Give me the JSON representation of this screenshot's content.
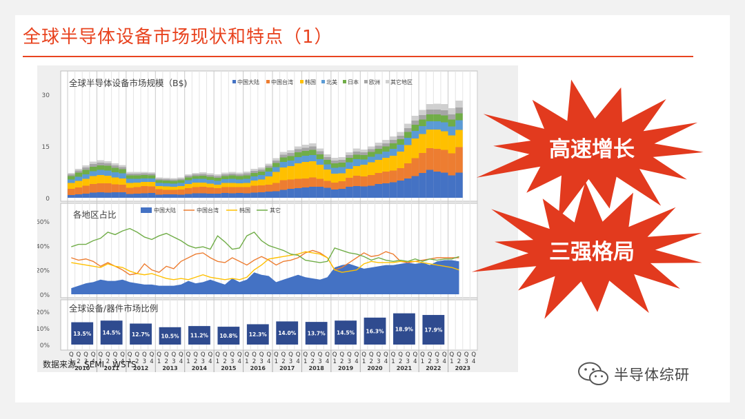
{
  "page": {
    "title": "全球半导体设备市场现状和特点（1）",
    "source": "数据来源：SEMI、WSTS",
    "watermark": "半导体综研"
  },
  "callouts": [
    {
      "text": "高速增长",
      "color": "#e23a1e"
    },
    {
      "text": "三强格局",
      "color": "#e23a1e"
    }
  ],
  "colors": {
    "中国大陆": "#4472c4",
    "中国台湾": "#ed7d31",
    "韩国": "#ffc000",
    "北美": "#5b9bd5",
    "日本": "#70ad47",
    "欧洲": "#a5a5a5",
    "其它地区": "#d0d0d0",
    "其它": "#70ad47"
  },
  "axis": {
    "years": [
      "2010",
      "2011",
      "2012",
      "2013",
      "2014",
      "2015",
      "2016",
      "2017",
      "2018",
      "2019",
      "2020",
      "2021",
      "2022",
      "2023"
    ],
    "quarter_prefix": "Q",
    "quarters": [
      "1",
      "2",
      "3",
      "4"
    ]
  },
  "chart_data": [
    {
      "type": "bar",
      "title": "全球半导体设备市场规模（B$)",
      "stacked": true,
      "ylim": [
        0,
        30
      ],
      "yticks": [
        "0",
        "15",
        "30"
      ],
      "legend": [
        "中国大陆",
        "中国台湾",
        "韩国",
        "北美",
        "日本",
        "欧洲",
        "其它地区"
      ],
      "legend_position": "top",
      "series": [
        {
          "name": "中国大陆",
          "values": [
            0.8,
            1.0,
            1.2,
            1.5,
            1.6,
            1.5,
            1.6,
            1.6,
            1.1,
            1.2,
            1.3,
            1.4,
            0.9,
            1.0,
            1.0,
            0.9,
            1.1,
            1.3,
            1.3,
            1.2,
            1.2,
            1.4,
            1.3,
            1.4,
            1.3,
            1.5,
            1.6,
            1.8,
            1.9,
            2.3,
            2.6,
            2.8,
            3.0,
            3.2,
            3.2,
            2.9,
            2.4,
            2.6,
            3.2,
            3.4,
            3.3,
            3.5,
            4.0,
            4.2,
            4.5,
            5.0,
            5.6,
            6.3,
            7.2,
            8.1,
            7.6,
            7.3,
            6.5,
            7.3
          ]
        },
        {
          "name": "中国台湾",
          "values": [
            1.8,
            2.0,
            2.3,
            2.5,
            2.6,
            2.7,
            2.3,
            2.2,
            1.8,
            1.9,
            2.1,
            1.9,
            1.6,
            1.3,
            1.3,
            1.5,
            1.7,
            1.8,
            1.9,
            1.8,
            1.6,
            1.7,
            1.8,
            1.7,
            1.8,
            2.0,
            2.0,
            2.0,
            2.4,
            2.8,
            2.7,
            2.7,
            2.6,
            2.7,
            2.3,
            2.0,
            2.0,
            2.2,
            2.6,
            3.0,
            2.9,
            3.1,
            3.2,
            3.4,
            3.4,
            3.6,
            4.4,
            5.2,
            5.8,
            6.3,
            6.6,
            6.6,
            6.4,
            7.4
          ]
        },
        {
          "name": "韩国",
          "values": [
            1.7,
            1.9,
            2.0,
            2.3,
            2.4,
            2.2,
            2.0,
            1.8,
            1.4,
            1.3,
            1.2,
            1.3,
            0.9,
            1.0,
            0.9,
            1.0,
            1.2,
            1.3,
            1.2,
            1.1,
            1.0,
            1.2,
            1.2,
            1.1,
            1.2,
            1.5,
            1.7,
            2.4,
            3.2,
            3.7,
            3.9,
            4.5,
            4.8,
            4.7,
            4.1,
            3.3,
            2.6,
            2.3,
            2.6,
            2.8,
            3.4,
            3.7,
            3.8,
            4.0,
            4.3,
            4.8,
            5.3,
            5.7,
            5.5,
            5.4,
            5.6,
            5.4,
            5.2,
            5.0
          ]
        },
        {
          "name": "北美",
          "values": [
            1.0,
            1.2,
            1.3,
            1.4,
            1.5,
            1.5,
            1.5,
            1.5,
            1.2,
            1.1,
            1.0,
            1.0,
            0.9,
            0.9,
            0.9,
            0.9,
            1.1,
            1.1,
            1.1,
            1.1,
            1.1,
            1.1,
            1.2,
            1.1,
            1.2,
            1.2,
            1.3,
            1.4,
            1.4,
            1.6,
            1.6,
            1.8,
            1.8,
            1.8,
            1.6,
            1.5,
            1.7,
            1.8,
            1.9,
            2.0,
            1.5,
            1.6,
            1.7,
            1.8,
            2.0,
            2.0,
            2.1,
            2.2,
            2.3,
            2.4,
            2.4,
            2.6,
            2.6,
            2.8
          ]
        },
        {
          "name": "日本",
          "values": [
            1.0,
            1.2,
            1.3,
            1.3,
            1.3,
            1.4,
            1.3,
            1.2,
            1.0,
            1.0,
            1.0,
            0.9,
            0.8,
            0.8,
            0.8,
            0.8,
            0.8,
            0.8,
            0.9,
            0.9,
            0.9,
            0.9,
            1.0,
            1.0,
            1.0,
            1.0,
            1.0,
            1.1,
            1.2,
            1.3,
            1.3,
            1.4,
            1.4,
            1.5,
            1.4,
            1.3,
            1.3,
            1.3,
            1.3,
            1.3,
            1.3,
            1.4,
            1.5,
            1.5,
            1.6,
            1.6,
            1.7,
            1.8,
            1.9,
            2.0,
            2.0,
            2.0,
            2.0,
            2.0
          ]
        },
        {
          "name": "欧洲",
          "values": [
            0.5,
            0.6,
            0.7,
            0.8,
            0.8,
            0.7,
            0.7,
            0.6,
            0.5,
            0.5,
            0.5,
            0.5,
            0.4,
            0.4,
            0.4,
            0.4,
            0.5,
            0.5,
            0.5,
            0.5,
            0.5,
            0.5,
            0.5,
            0.5,
            0.6,
            0.6,
            0.6,
            0.6,
            0.7,
            0.8,
            0.9,
            0.9,
            0.9,
            1.0,
            0.9,
            0.8,
            0.8,
            0.8,
            0.8,
            0.9,
            0.8,
            0.8,
            0.9,
            0.9,
            1.0,
            1.0,
            1.1,
            1.2,
            1.3,
            1.4,
            1.4,
            1.5,
            1.5,
            1.7
          ]
        },
        {
          "name": "其它地区",
          "values": [
            0.4,
            0.5,
            0.6,
            0.7,
            0.7,
            0.6,
            0.6,
            0.6,
            0.5,
            0.5,
            0.4,
            0.4,
            0.4,
            0.4,
            0.4,
            0.4,
            0.4,
            0.4,
            0.5,
            0.5,
            0.5,
            0.5,
            0.5,
            0.5,
            0.5,
            0.6,
            0.6,
            0.6,
            0.7,
            0.8,
            0.8,
            0.8,
            0.9,
            0.9,
            0.8,
            0.8,
            0.8,
            0.8,
            0.8,
            0.9,
            0.8,
            0.8,
            0.9,
            1.0,
            1.0,
            1.1,
            1.3,
            1.4,
            1.5,
            1.6,
            1.7,
            1.8,
            1.8,
            2.0
          ]
        }
      ]
    },
    {
      "type": "line",
      "title": "各地区占比",
      "ylim": [
        0,
        60
      ],
      "yticks": [
        "0%",
        "20%",
        "40%",
        "60%"
      ],
      "legend": [
        "中国大陆",
        "中国台湾",
        "韩国",
        "其它"
      ],
      "legend_position": "top",
      "area_series": "中国大陆",
      "series": [
        {
          "name": "中国大陆",
          "values": [
            5,
            7,
            9,
            10,
            12,
            11,
            11,
            12,
            10,
            9,
            8,
            8,
            7,
            7,
            7,
            8,
            11,
            9,
            10,
            12,
            10,
            8,
            13,
            10,
            12,
            18,
            16,
            15,
            10,
            12,
            14,
            16,
            14,
            13,
            12,
            14,
            22,
            24,
            25,
            23,
            21,
            22,
            23,
            24,
            24,
            25,
            26,
            25,
            26,
            24,
            27,
            28,
            28,
            27
          ]
        },
        {
          "name": "中国台湾",
          "values": [
            30,
            28,
            29,
            27,
            23,
            26,
            23,
            20,
            16,
            17,
            25,
            20,
            18,
            23,
            21,
            27,
            30,
            33,
            34,
            30,
            27,
            26,
            30,
            27,
            24,
            28,
            31,
            28,
            24,
            27,
            28,
            30,
            34,
            36,
            34,
            30,
            20,
            22,
            26,
            30,
            34,
            31,
            32,
            35,
            33,
            27,
            26,
            27,
            28,
            29,
            30,
            30,
            30,
            30
          ]
        },
        {
          "name": "韩国",
          "values": [
            26,
            25,
            24,
            23,
            22,
            25,
            23,
            22,
            19,
            17,
            16,
            17,
            15,
            13,
            12,
            13,
            12,
            14,
            16,
            14,
            13,
            12,
            13,
            12,
            14,
            20,
            24,
            29,
            30,
            31,
            32,
            33,
            35,
            34,
            33,
            30,
            20,
            18,
            19,
            20,
            25,
            27,
            26,
            26,
            26,
            27,
            27,
            27,
            26,
            25,
            24,
            23,
            22,
            20
          ]
        },
        {
          "name": "其它",
          "values": [
            39,
            41,
            41,
            44,
            46,
            51,
            49,
            52,
            54,
            51,
            47,
            45,
            48,
            50,
            47,
            44,
            40,
            38,
            39,
            37,
            48,
            43,
            37,
            38,
            48,
            51,
            44,
            40,
            38,
            36,
            33,
            32,
            28,
            27,
            26,
            27,
            38,
            36,
            34,
            33,
            31,
            28,
            30,
            28,
            27,
            28,
            27,
            29,
            27,
            29,
            28,
            29,
            29,
            31
          ]
        }
      ]
    },
    {
      "type": "bar",
      "title": "全球设备/器件市场比例",
      "ylim": [
        0,
        20
      ],
      "yticks": [
        "0%",
        "10%",
        "20%"
      ],
      "categories": [
        "2010",
        "2011",
        "2012",
        "2013",
        "2014",
        "2015",
        "2016",
        "2017",
        "2018",
        "2019",
        "2020",
        "2021",
        "2022"
      ],
      "values": [
        13.5,
        14.5,
        12.7,
        10.5,
        11.2,
        10.8,
        12.3,
        14.0,
        13.7,
        14.5,
        16.3,
        18.9,
        17.9
      ],
      "labels": [
        "13.5%",
        "14.5%",
        "12.7%",
        "10.5%",
        "11.2%",
        "10.8%",
        "12.3%",
        "14.0%",
        "13.7%",
        "14.5%",
        "16.3%",
        "18.9%",
        "17.9%"
      ]
    }
  ]
}
